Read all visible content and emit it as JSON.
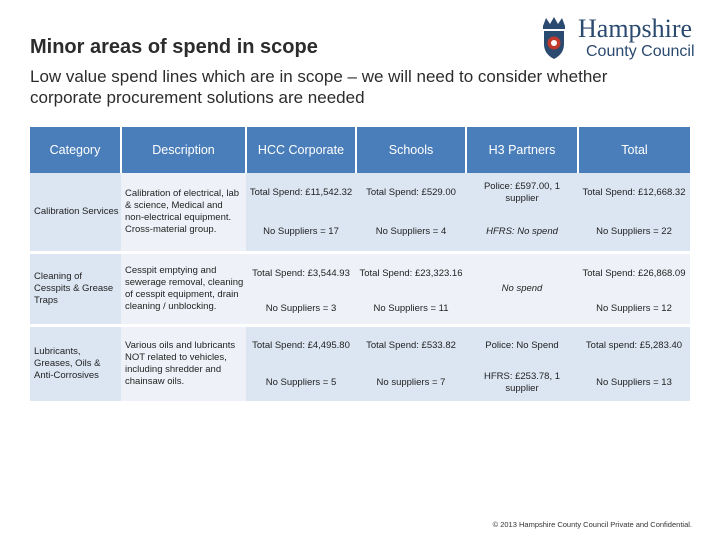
{
  "header": {
    "title": "Minor areas of spend in scope",
    "subtitle": "Low value spend lines which are in scope – we will need to consider whether corporate procurement solutions are needed"
  },
  "logo": {
    "line1": "Hampshire",
    "line2": "County Council",
    "brand_color": "#2b4a6f",
    "accent_color": "#c0392b"
  },
  "table": {
    "header_color": "#4a7ebb",
    "columns": [
      "Category",
      "Description",
      "HCC Corporate",
      "Schools",
      "H3 Partners",
      "Total"
    ],
    "rows": [
      {
        "category": "Calibration Services",
        "description": "Calibration of electrical, lab & science, Medical and non-electrical equipment. Cross-material group.",
        "hcc_spend": "Total Spend: £11,542.32",
        "hcc_suppliers": "No Suppliers = 17",
        "schools_spend": "Total Spend: £529.00",
        "schools_suppliers": "No Suppliers = 4",
        "h3_a": "Police: £597.00, 1 supplier",
        "h3_b": "HFRS: No spend",
        "total_spend": "Total Spend: £12,668.32",
        "total_suppliers": "No Suppliers = 22"
      },
      {
        "category": "Cleaning of Cesspits & Grease Traps",
        "description": "Cesspit emptying and sewerage removal, cleaning of cesspit equipment, drain cleaning / unblocking.",
        "hcc_spend": "Total Spend: £3,544.93",
        "hcc_suppliers": "No Suppliers = 3",
        "schools_spend": "Total Spend: £23,323.16",
        "schools_suppliers": "No Suppliers = 11",
        "h3_a": "No spend",
        "total_spend": "Total Spend: £26,868.09",
        "total_suppliers": "No Suppliers = 12"
      },
      {
        "category": "Lubricants, Greases, Oils & Anti-Corrosives",
        "description": "Various oils and lubricants NOT related to vehicles, including shredder and chainsaw oils.",
        "hcc_spend": "Total Spend: £4,495.80",
        "hcc_suppliers": "No Suppliers = 5",
        "schools_spend": "Total Spend: £533.82",
        "schools_suppliers": "No suppliers = 7",
        "h3_a": "Police: No Spend",
        "h3_b": "HFRS: £253.78, 1 supplier",
        "total_spend": "Total spend: £5,283.40",
        "total_suppliers": "No Suppliers = 13"
      }
    ]
  },
  "footer": {
    "copyright": "© 2013 Hampshire County Council Private and Confidential."
  }
}
